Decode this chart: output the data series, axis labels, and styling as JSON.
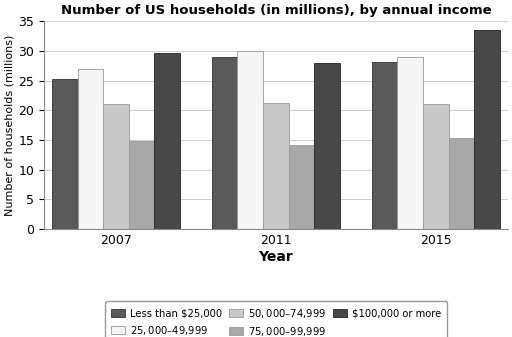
{
  "title": "Number of US households (in millions), by annual income",
  "xlabel": "Year",
  "ylabel": "Number of households (millions)",
  "years": [
    2007,
    2011,
    2015
  ],
  "categories": [
    "Less than $25,000",
    "$25,000–$49,999",
    "$50,000–$74,999",
    "$75,000–$99,999",
    "$100,000 or more"
  ],
  "values": {
    "Less than $25,000": [
      25.2,
      29.0,
      28.1
    ],
    "$25,000–$49,999": [
      27.0,
      30.0,
      29.0
    ],
    "$50,000–$74,999": [
      21.0,
      21.2,
      21.0
    ],
    "$75,000–$99,999": [
      14.8,
      14.2,
      15.3
    ],
    "$100,000 or more": [
      29.7,
      28.0,
      33.5
    ]
  },
  "colors": {
    "Less than $25,000": "#595959",
    "$25,000–$49,999": "#f5f5f5",
    "$50,000–$74,999": "#c8c8c8",
    "$75,000–$99,999": "#a8a8a8",
    "$100,000 or more": "#484848"
  },
  "edge_colors": {
    "Less than $25,000": "#333333",
    "$25,000–$49,999": "#999999",
    "$50,000–$74,999": "#999999",
    "$75,000–$99,999": "#999999",
    "$100,000 or more": "#222222"
  },
  "ylim": [
    0,
    35
  ],
  "yticks": [
    0,
    5,
    10,
    15,
    20,
    25,
    30,
    35
  ],
  "figsize": [
    5.12,
    3.37
  ],
  "dpi": 100,
  "bar_width": 0.16,
  "group_centers": [
    0.45,
    1.45,
    2.45
  ],
  "xlim": [
    0,
    2.9
  ]
}
